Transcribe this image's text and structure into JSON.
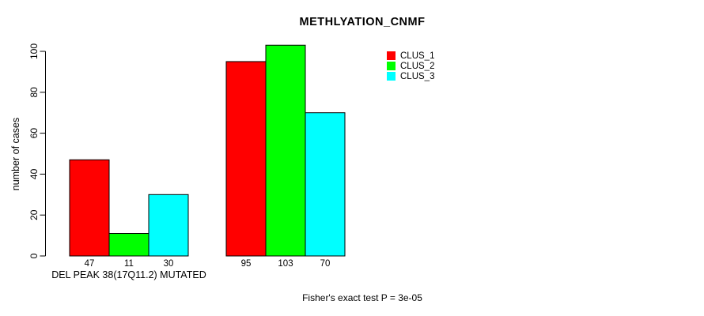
{
  "chart_data": {
    "type": "bar",
    "title": "METHLYATION_CNMF",
    "ylabel": "number of cases",
    "xlabel": "",
    "ylim": [
      0,
      100
    ],
    "yticks": [
      0,
      20,
      40,
      60,
      80,
      100
    ],
    "grid": false,
    "legend_position": "top-right",
    "groups": [
      {
        "label": "DEL PEAK 38(17Q11.2) MUTATED",
        "values": [
          47,
          11,
          30
        ]
      },
      {
        "label": "",
        "values": [
          95,
          103,
          70
        ]
      }
    ],
    "series": [
      {
        "name": "CLUS_1",
        "color": "#FF0000"
      },
      {
        "name": "CLUS_2",
        "color": "#00FF00"
      },
      {
        "name": "CLUS_3",
        "color": "#00FFFF"
      }
    ],
    "bar_value_labels": [
      [
        47,
        11,
        30
      ],
      [
        95,
        103,
        70
      ]
    ],
    "footnote": "Fisher's exact test P = 3e-05",
    "axis_color": "#000000"
  }
}
